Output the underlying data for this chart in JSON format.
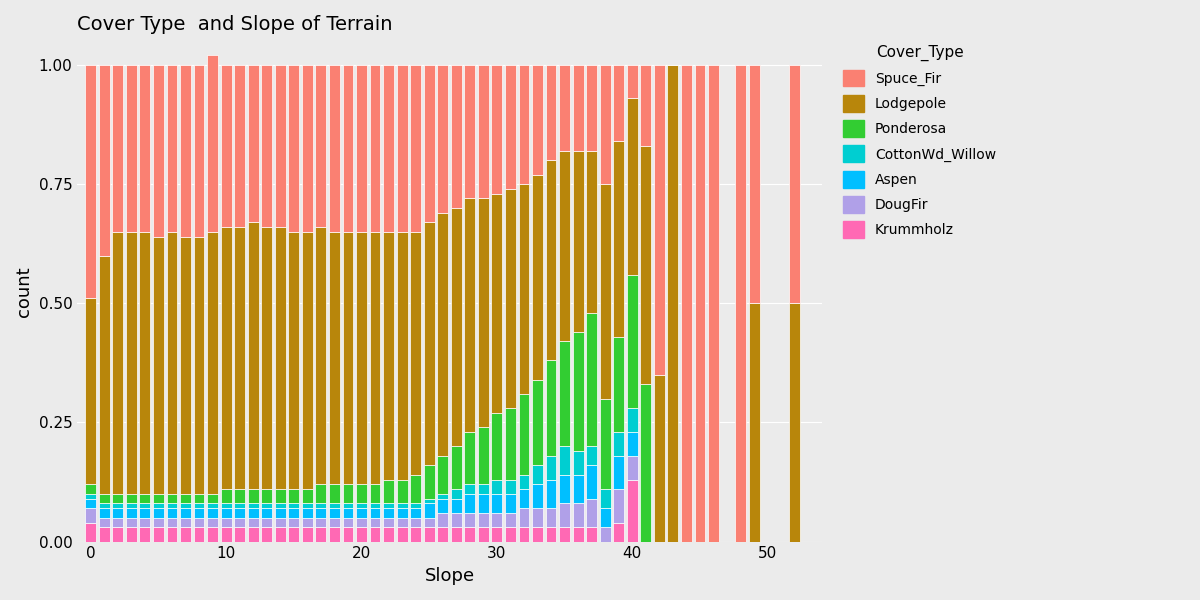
{
  "title": "Cover Type  and Slope of Terrain",
  "xlabel": "Slope",
  "ylabel": "count",
  "cover_types_bottom_to_top": [
    "Krummholz",
    "DougFir",
    "Aspen",
    "CottonWd_Willow",
    "Ponderosa",
    "Lodgepole",
    "Spuce_Fir"
  ],
  "legend_order": [
    "Spuce_Fir",
    "Lodgepole",
    "Ponderosa",
    "CottonWd_Willow",
    "Aspen",
    "DougFir",
    "Krummholz"
  ],
  "colors": {
    "Spuce_Fir": "#FA8072",
    "Lodgepole": "#B8860B",
    "Ponderosa": "#32CD32",
    "CottonWd_Willow": "#00CED1",
    "Aspen": "#00BFFF",
    "DougFir": "#B0A0E8",
    "Krummholz": "#FF69B4"
  },
  "slopes": [
    0,
    1,
    2,
    3,
    4,
    5,
    6,
    7,
    8,
    9,
    10,
    11,
    12,
    13,
    14,
    15,
    16,
    17,
    18,
    19,
    20,
    21,
    22,
    23,
    24,
    25,
    26,
    27,
    28,
    29,
    30,
    31,
    32,
    33,
    34,
    35,
    36,
    37,
    38,
    39,
    40,
    41,
    42,
    43,
    44,
    45,
    46,
    48,
    49,
    52
  ],
  "data": {
    "Krummholz": [
      0.04,
      0.03,
      0.03,
      0.03,
      0.03,
      0.03,
      0.03,
      0.03,
      0.03,
      0.03,
      0.03,
      0.03,
      0.03,
      0.03,
      0.03,
      0.03,
      0.03,
      0.03,
      0.03,
      0.03,
      0.03,
      0.03,
      0.03,
      0.03,
      0.03,
      0.03,
      0.03,
      0.03,
      0.03,
      0.03,
      0.03,
      0.03,
      0.03,
      0.03,
      0.03,
      0.03,
      0.03,
      0.03,
      0.0,
      0.04,
      0.13,
      0.0,
      0.0,
      0.0,
      0.0,
      0.0,
      0.0,
      0.0,
      0.0,
      0.0
    ],
    "DougFir": [
      0.03,
      0.02,
      0.02,
      0.02,
      0.02,
      0.02,
      0.02,
      0.02,
      0.02,
      0.02,
      0.02,
      0.02,
      0.02,
      0.02,
      0.02,
      0.02,
      0.02,
      0.02,
      0.02,
      0.02,
      0.02,
      0.02,
      0.02,
      0.02,
      0.02,
      0.02,
      0.03,
      0.03,
      0.03,
      0.03,
      0.03,
      0.03,
      0.04,
      0.04,
      0.04,
      0.05,
      0.05,
      0.06,
      0.03,
      0.07,
      0.05,
      0.0,
      0.0,
      0.0,
      0.0,
      0.0,
      0.0,
      0.0,
      0.0,
      0.0
    ],
    "Aspen": [
      0.02,
      0.02,
      0.02,
      0.02,
      0.02,
      0.02,
      0.02,
      0.02,
      0.02,
      0.02,
      0.02,
      0.02,
      0.02,
      0.02,
      0.02,
      0.02,
      0.02,
      0.02,
      0.02,
      0.02,
      0.02,
      0.02,
      0.02,
      0.02,
      0.02,
      0.03,
      0.03,
      0.03,
      0.04,
      0.04,
      0.04,
      0.04,
      0.04,
      0.05,
      0.06,
      0.06,
      0.06,
      0.07,
      0.04,
      0.07,
      0.05,
      0.0,
      0.0,
      0.0,
      0.0,
      0.0,
      0.0,
      0.0,
      0.0,
      0.0
    ],
    "CottonWd_Willow": [
      0.01,
      0.01,
      0.01,
      0.01,
      0.01,
      0.01,
      0.01,
      0.01,
      0.01,
      0.01,
      0.01,
      0.01,
      0.01,
      0.01,
      0.01,
      0.01,
      0.01,
      0.01,
      0.01,
      0.01,
      0.01,
      0.01,
      0.01,
      0.01,
      0.01,
      0.01,
      0.01,
      0.02,
      0.02,
      0.02,
      0.03,
      0.03,
      0.03,
      0.04,
      0.05,
      0.06,
      0.05,
      0.04,
      0.04,
      0.05,
      0.05,
      0.0,
      0.0,
      0.0,
      0.0,
      0.0,
      0.0,
      0.0,
      0.0,
      0.0
    ],
    "Ponderosa": [
      0.02,
      0.02,
      0.02,
      0.02,
      0.02,
      0.02,
      0.02,
      0.02,
      0.02,
      0.02,
      0.03,
      0.03,
      0.03,
      0.03,
      0.03,
      0.03,
      0.03,
      0.04,
      0.04,
      0.04,
      0.04,
      0.04,
      0.05,
      0.05,
      0.06,
      0.07,
      0.08,
      0.09,
      0.11,
      0.12,
      0.14,
      0.15,
      0.17,
      0.18,
      0.2,
      0.22,
      0.25,
      0.28,
      0.19,
      0.2,
      0.28,
      0.33,
      0.0,
      0.0,
      0.0,
      0.0,
      0.0,
      0.0,
      0.0,
      0.0
    ],
    "Lodgepole": [
      0.39,
      0.5,
      0.55,
      0.55,
      0.55,
      0.54,
      0.55,
      0.54,
      0.54,
      0.55,
      0.55,
      0.55,
      0.56,
      0.55,
      0.55,
      0.54,
      0.54,
      0.54,
      0.53,
      0.53,
      0.53,
      0.53,
      0.52,
      0.52,
      0.51,
      0.51,
      0.51,
      0.5,
      0.49,
      0.48,
      0.46,
      0.46,
      0.44,
      0.43,
      0.42,
      0.4,
      0.38,
      0.34,
      0.45,
      0.41,
      0.37,
      0.5,
      0.35,
      1.0,
      0.0,
      0.0,
      0.0,
      0.0,
      0.5,
      0.5
    ],
    "Spuce_Fir": [
      0.49,
      0.4,
      0.35,
      0.35,
      0.35,
      0.36,
      0.35,
      0.36,
      0.36,
      0.37,
      0.34,
      0.34,
      0.33,
      0.34,
      0.34,
      0.35,
      0.35,
      0.34,
      0.35,
      0.35,
      0.35,
      0.35,
      0.35,
      0.35,
      0.35,
      0.33,
      0.31,
      0.3,
      0.28,
      0.28,
      0.27,
      0.26,
      0.25,
      0.23,
      0.2,
      0.18,
      0.18,
      0.18,
      0.25,
      0.16,
      0.07,
      0.17,
      0.65,
      0.0,
      1.0,
      1.0,
      1.0,
      1.0,
      0.5,
      0.5
    ]
  },
  "background_color": "#EBEBEB",
  "ylim": [
    0,
    1.0
  ],
  "yticks": [
    0.0,
    0.25,
    0.5,
    0.75,
    1.0
  ],
  "xticks": [
    0,
    10,
    20,
    30,
    40,
    50
  ]
}
